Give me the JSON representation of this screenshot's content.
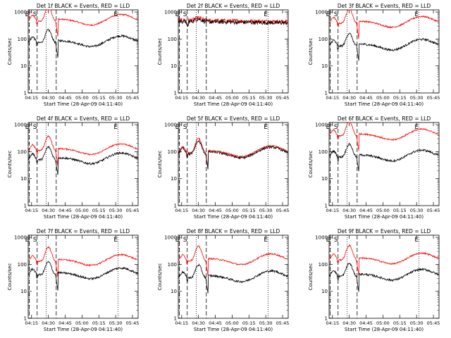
{
  "chart_data": {
    "type": "line",
    "layout": {
      "rows": 3,
      "cols": 3
    },
    "shared": {
      "ylabel": "Counts/sec",
      "xlabel": "Start Time (28-Apr-09 04:11:40)",
      "x_tick_labels": [
        "04:15",
        "04:30",
        "04:45",
        "05:00",
        "05:15",
        "05:30",
        "05:45"
      ],
      "y_tick_labels": [
        "1",
        "10",
        "100",
        "1000"
      ],
      "y_scale": "log",
      "ylim": [
        1,
        1200
      ],
      "xlim_minutes_after_0400": [
        12,
        110
      ],
      "interval_markers": [
        {
          "label": "E",
          "minute": 13,
          "style": "dashed"
        },
        {
          "label": "S",
          "minute": 20,
          "style": "dashed"
        },
        {
          "label": "",
          "minute": 28,
          "style": "dotted"
        },
        {
          "label": "",
          "minute": 37,
          "style": "dashed"
        },
        {
          "label": "E",
          "minute": 92,
          "style": "dotted"
        }
      ],
      "colors": {
        "events": "#000000",
        "lld": "#ff0000"
      }
    },
    "panels": [
      {
        "title": "Det 1f BLACK = Events, RED = LLD",
        "curve": "standard",
        "events_base": 80,
        "lld_base": 500
      },
      {
        "title": "Det 2f BLACK = Events, RED = LLD",
        "curve": "flat",
        "events_base": 450,
        "lld_base": 500
      },
      {
        "title": "Det 3f BLACK = Events, RED = LLD",
        "curve": "standard",
        "events_base": 60,
        "lld_base": 420
      },
      {
        "title": "Det 4f BLACK = Events, RED = LLD",
        "curve": "standard",
        "events_base": 55,
        "lld_base": 120
      },
      {
        "title": "Det 5f BLACK = Events, RED = LLD",
        "curve": "close",
        "events_base": 90,
        "lld_base": 100
      },
      {
        "title": "Det 6f BLACK = Events, RED = LLD",
        "curve": "standard",
        "events_base": 70,
        "lld_base": 420
      },
      {
        "title": "Det 7f BLACK = Events, RED = LLD",
        "curve": "standard",
        "events_base": 45,
        "lld_base": 140
      },
      {
        "title": "Det 8f BLACK = Events, RED = LLD",
        "curve": "standard",
        "events_base": 35,
        "lld_base": 150
      },
      {
        "title": "Det 9f BLACK = Events, RED = LLD",
        "curve": "standard",
        "events_base": 40,
        "lld_base": 160
      }
    ]
  }
}
